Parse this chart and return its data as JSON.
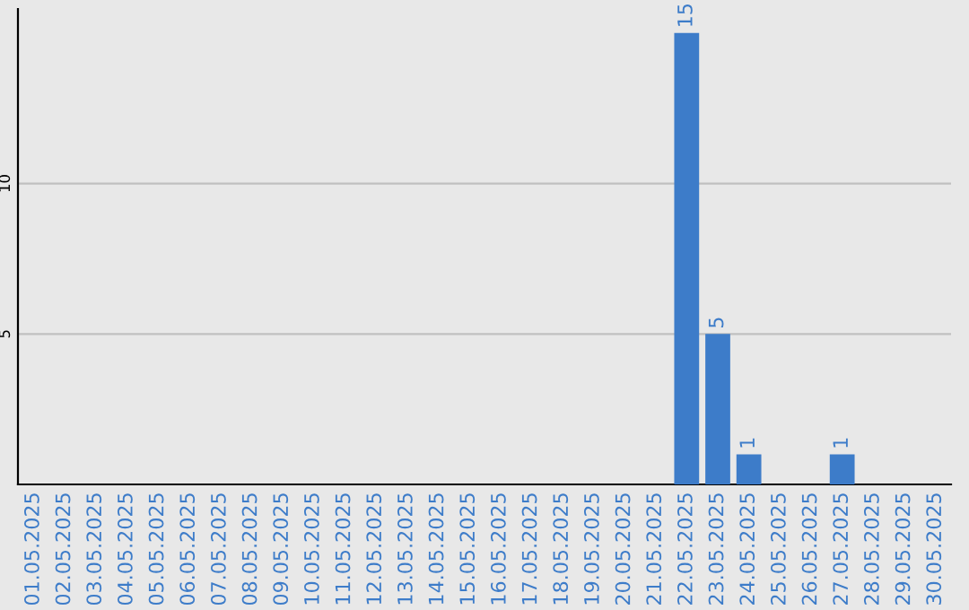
{
  "chart_data": {
    "type": "bar",
    "categories": [
      "01.05.2025",
      "02.05.2025",
      "03.05.2025",
      "04.05.2025",
      "05.05.2025",
      "06.05.2025",
      "07.05.2025",
      "08.05.2025",
      "09.05.2025",
      "10.05.2025",
      "11.05.2025",
      "12.05.2025",
      "13.05.2025",
      "14.05.2025",
      "15.05.2025",
      "16.05.2025",
      "17.05.2025",
      "18.05.2025",
      "19.05.2025",
      "20.05.2025",
      "21.05.2025",
      "22.05.2025",
      "23.05.2025",
      "24.05.2025",
      "25.05.2025",
      "26.05.2025",
      "27.05.2025",
      "28.05.2025",
      "29.05.2025",
      "30.05.2025"
    ],
    "values": [
      0,
      0,
      0,
      0,
      0,
      0,
      0,
      0,
      0,
      0,
      0,
      0,
      0,
      0,
      0,
      0,
      0,
      0,
      0,
      0,
      0,
      15,
      5,
      1,
      0,
      0,
      1,
      0,
      0,
      0
    ],
    "value_labels": [
      null,
      null,
      null,
      null,
      null,
      null,
      null,
      null,
      null,
      null,
      null,
      null,
      null,
      null,
      null,
      null,
      null,
      null,
      null,
      null,
      null,
      "15",
      "5",
      "1",
      null,
      null,
      "1",
      null,
      null,
      null
    ],
    "color": "#3d7cc9",
    "ylim": [
      0,
      15.8
    ],
    "yticks": [
      5,
      10
    ],
    "grid": "y"
  }
}
